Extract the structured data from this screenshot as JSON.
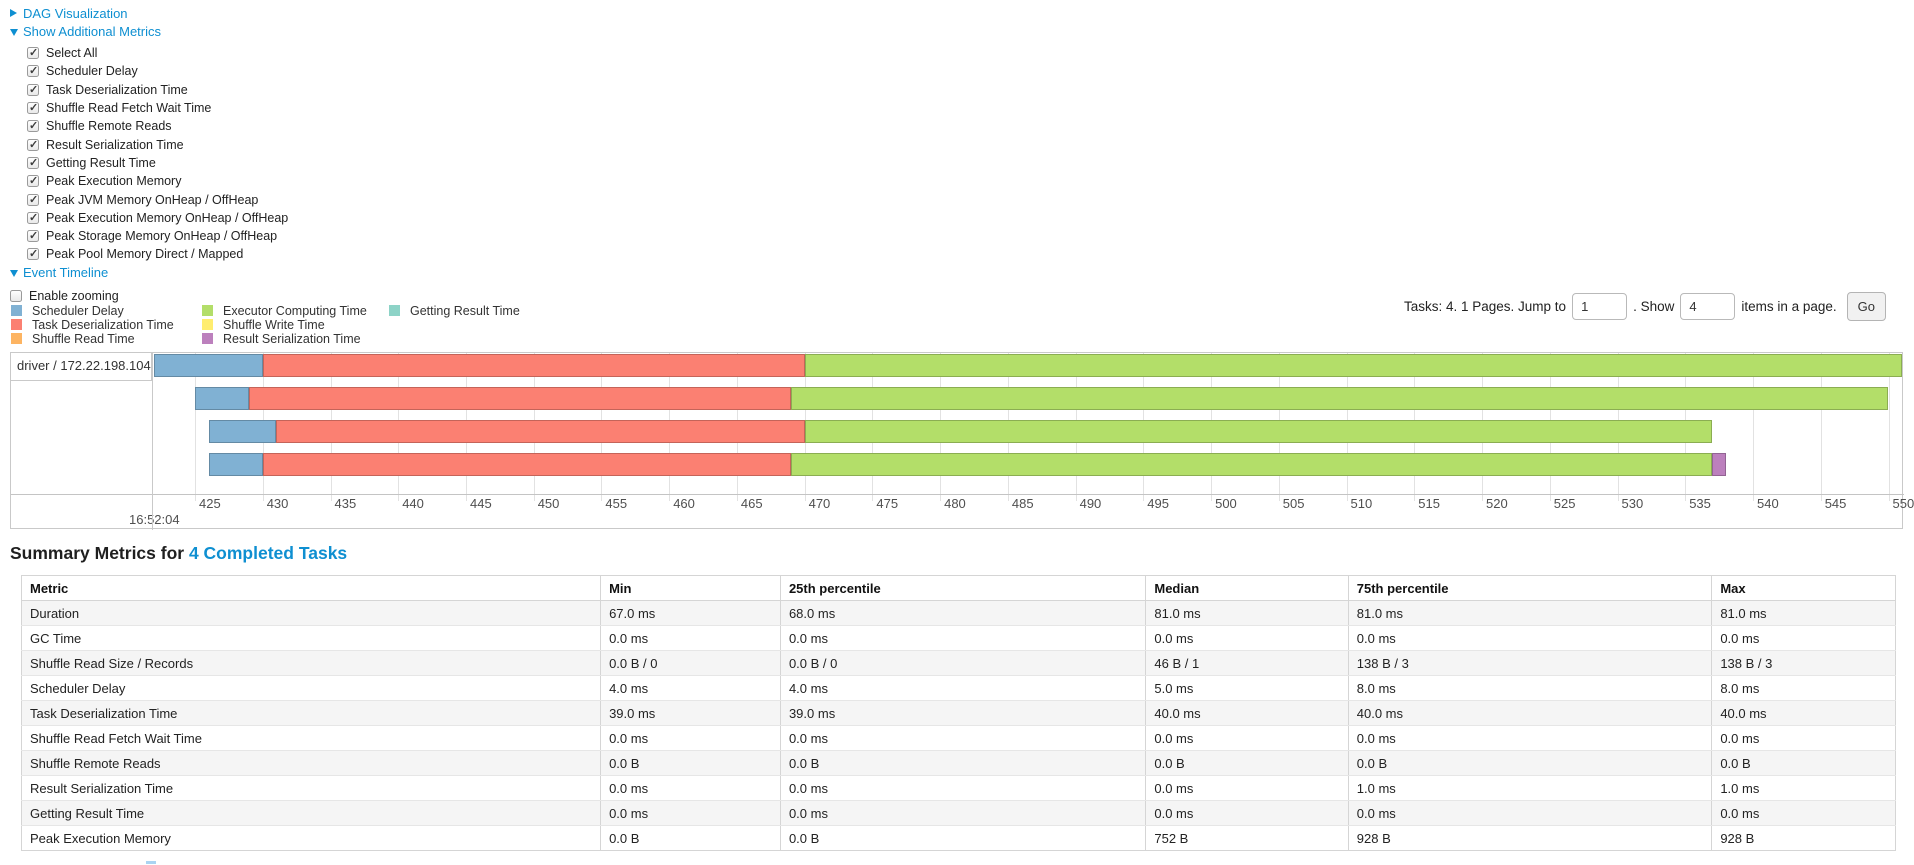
{
  "controls": {
    "dag_label": "DAG Visualization",
    "metrics_label": "Show Additional Metrics",
    "metric_items": [
      "Select All",
      "Scheduler Delay",
      "Task Deserialization Time",
      "Shuffle Read Fetch Wait Time",
      "Shuffle Remote Reads",
      "Result Serialization Time",
      "Getting Result Time",
      "Peak Execution Memory",
      "Peak JVM Memory OnHeap / OffHeap",
      "Peak Execution Memory OnHeap / OffHeap",
      "Peak Storage Memory OnHeap / OffHeap",
      "Peak Pool Memory Direct / Mapped"
    ],
    "event_timeline_label": "Event Timeline",
    "enable_zooming_label": "Enable zooming",
    "enable_zooming_checked": false
  },
  "legend_columns": [
    [
      {
        "key": "scheduler_delay",
        "label": "Scheduler Delay"
      },
      {
        "key": "task_deserialization",
        "label": "Task Deserialization Time"
      },
      {
        "key": "shuffle_read",
        "label": "Shuffle Read Time"
      }
    ],
    [
      {
        "key": "executor_computing",
        "label": "Executor Computing Time"
      },
      {
        "key": "shuffle_write",
        "label": "Shuffle Write Time"
      },
      {
        "key": "result_serialization",
        "label": "Result Serialization Time"
      }
    ],
    [
      {
        "key": "getting_result",
        "label": "Getting Result Time"
      }
    ]
  ],
  "pagination": {
    "prefix": "Tasks: 4. 1 Pages. Jump to",
    "jump_value": "1",
    "mid": ". Show",
    "show_value": "4",
    "suffix": "items in a page.",
    "go_label": "Go"
  },
  "chart_data": {
    "type": "timeline",
    "row_label": "driver / 172.22.198.104",
    "axis": {
      "min": 421.9,
      "max": 551.0,
      "ticks_from": 425,
      "ticks_to": 550,
      "tick_step": 5,
      "start_time_label": "16:52:04",
      "units": "milliseconds within second 16:52:04"
    },
    "colors": {
      "scheduler_delay": "#80B1D3",
      "task_deserialization": "#FB8072",
      "shuffle_read": "#FDB462",
      "executor_computing": "#B3DE69",
      "shuffle_write": "#FFED6F",
      "result_serialization": "#BC80BD",
      "getting_result": "#8DD3C7"
    },
    "tasks": [
      {
        "segments": [
          {
            "metric": "scheduler_delay",
            "start": 422,
            "end": 430
          },
          {
            "metric": "task_deserialization",
            "start": 430,
            "end": 470
          },
          {
            "metric": "executor_computing",
            "start": 470,
            "end": 551
          }
        ]
      },
      {
        "segments": [
          {
            "metric": "scheduler_delay",
            "start": 425,
            "end": 429
          },
          {
            "metric": "task_deserialization",
            "start": 429,
            "end": 469
          },
          {
            "metric": "executor_computing",
            "start": 469,
            "end": 550
          }
        ]
      },
      {
        "segments": [
          {
            "metric": "scheduler_delay",
            "start": 426,
            "end": 431
          },
          {
            "metric": "task_deserialization",
            "start": 431,
            "end": 470
          },
          {
            "metric": "executor_computing",
            "start": 470,
            "end": 537
          }
        ]
      },
      {
        "segments": [
          {
            "metric": "scheduler_delay",
            "start": 426,
            "end": 430
          },
          {
            "metric": "task_deserialization",
            "start": 430,
            "end": 469
          },
          {
            "metric": "executor_computing",
            "start": 469,
            "end": 537
          },
          {
            "metric": "result_serialization",
            "start": 537,
            "end": 538
          }
        ]
      }
    ]
  },
  "summary": {
    "heading_prefix": "Summary Metrics for ",
    "heading_link": "4 Completed Tasks",
    "columns": [
      "Metric",
      "Min",
      "25th percentile",
      "Median",
      "75th percentile",
      "Max"
    ],
    "col_widths": [
      30.9,
      9.6,
      19.5,
      10.8,
      19.4,
      9.8
    ],
    "rows": [
      [
        "Duration",
        "67.0 ms",
        "68.0 ms",
        "81.0 ms",
        "81.0 ms",
        "81.0 ms"
      ],
      [
        "GC Time",
        "0.0 ms",
        "0.0 ms",
        "0.0 ms",
        "0.0 ms",
        "0.0 ms"
      ],
      [
        "Shuffle Read Size / Records",
        "0.0 B / 0",
        "0.0 B / 0",
        "46 B / 1",
        "138 B / 3",
        "138 B / 3"
      ],
      [
        "Scheduler Delay",
        "4.0 ms",
        "4.0 ms",
        "5.0 ms",
        "8.0 ms",
        "8.0 ms"
      ],
      [
        "Task Deserialization Time",
        "39.0 ms",
        "39.0 ms",
        "40.0 ms",
        "40.0 ms",
        "40.0 ms"
      ],
      [
        "Shuffle Read Fetch Wait Time",
        "0.0 ms",
        "0.0 ms",
        "0.0 ms",
        "0.0 ms",
        "0.0 ms"
      ],
      [
        "Shuffle Remote Reads",
        "0.0 B",
        "0.0 B",
        "0.0 B",
        "0.0 B",
        "0.0 B"
      ],
      [
        "Result Serialization Time",
        "0.0 ms",
        "0.0 ms",
        "0.0 ms",
        "1.0 ms",
        "1.0 ms"
      ],
      [
        "Getting Result Time",
        "0.0 ms",
        "0.0 ms",
        "0.0 ms",
        "0.0 ms",
        "0.0 ms"
      ],
      [
        "Peak Execution Memory",
        "0.0 B",
        "0.0 B",
        "752 B",
        "928 B",
        "928 B"
      ]
    ]
  }
}
